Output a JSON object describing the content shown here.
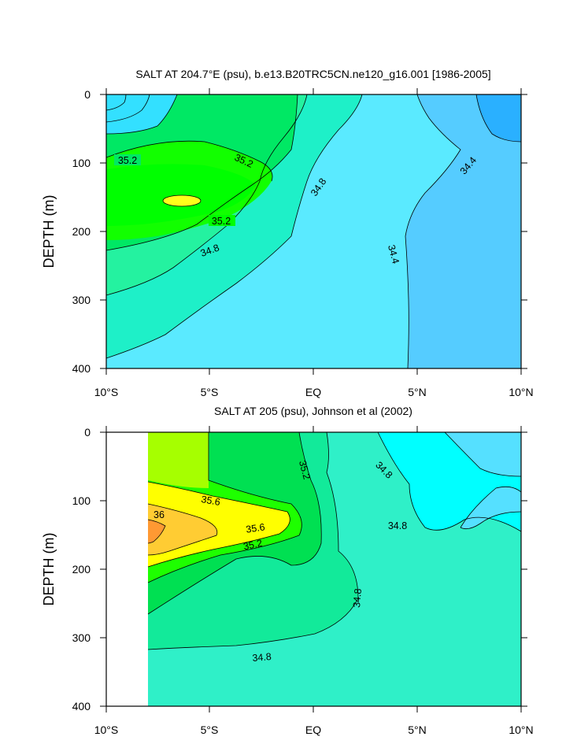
{
  "chart_data": [
    {
      "type": "contour",
      "title": "SALT AT 204.7°E (psu), b.e13.B20TRC5CN.ne120_g16.001 [1986-2005]",
      "xlabel": "",
      "ylabel": "DEPTH (m)",
      "xticks": [
        "10°S",
        "5°S",
        "EQ",
        "5°N",
        "10°N"
      ],
      "xlim": [
        -10,
        10
      ],
      "yticks": [
        "0",
        "100",
        "200",
        "300",
        "400"
      ],
      "ylim": [
        0,
        400
      ],
      "contour_labels": [
        {
          "text": "35.2",
          "x": -9.0,
          "y": 95
        },
        {
          "text": "35.2",
          "x": -6.2,
          "y": 185
        },
        {
          "text": "34.8",
          "x": -5.0,
          "y": 228
        },
        {
          "text": "35.2",
          "x": -3.4,
          "y": 96
        },
        {
          "text": "34.8",
          "x": 0.3,
          "y": 140
        },
        {
          "text": "34.4",
          "x": 7.5,
          "y": 105
        },
        {
          "text": "34.4",
          "x": 3.6,
          "y": 240
        }
      ],
      "filled_regions": [
        {
          "level": "34.4-34.6",
          "color": "#00ffff"
        },
        {
          "level": "34.6-34.8",
          "color": "#00ffff"
        },
        {
          "level": "34.8-35.0",
          "color": "#00ffc9"
        },
        {
          "level": "35.0-35.2",
          "color": "#00ff8c"
        },
        {
          "level": "35.2-35.4",
          "color": "#1eff00"
        },
        {
          "level": "35.4-35.6",
          "color": "#00ff00"
        },
        {
          "level": "35.6-35.8",
          "color": "#ffff00"
        }
      ]
    },
    {
      "type": "contour",
      "title": "SALT AT 205 (psu), Johnson et al (2002)",
      "xlabel": "",
      "ylabel": "DEPTH (m)",
      "xticks": [
        "10°S",
        "5°S",
        "EQ",
        "5°N",
        "10°N"
      ],
      "xlim": [
        -10,
        10
      ],
      "yticks": [
        "0",
        "100",
        "200",
        "300",
        "400"
      ],
      "ylim": [
        0,
        400
      ],
      "contour_labels": [
        {
          "text": "35.2",
          "x": -0.8,
          "y": 60
        },
        {
          "text": "34.8",
          "x": 3.4,
          "y": 60
        },
        {
          "text": "35.6",
          "x": -5.0,
          "y": 100
        },
        {
          "text": "36",
          "x": -7.5,
          "y": 127
        },
        {
          "text": "35.6",
          "x": -2.8,
          "y": 143
        },
        {
          "text": "35.2",
          "x": -3.0,
          "y": 165
        },
        {
          "text": "34.8",
          "x": 3.9,
          "y": 140
        },
        {
          "text": "34.8",
          "x": 2.1,
          "y": 243
        },
        {
          "text": "34.8",
          "x": -2.4,
          "y": 328
        }
      ],
      "filled_regions": [
        {
          "level": "34.6-34.8",
          "color": "#00ffff"
        },
        {
          "level": "34.8-35.0",
          "color": "#00ffc9"
        },
        {
          "level": "35.0-35.2",
          "color": "#00ff8c"
        },
        {
          "level": "35.2-35.6",
          "color": "#1eff00"
        },
        {
          "level": "35.6-35.8",
          "color": "#ffff00"
        },
        {
          "level": "35.8-36.0",
          "color": "#ffcc00"
        },
        {
          "level": ">36.0",
          "color": "#ff9900"
        }
      ]
    }
  ]
}
